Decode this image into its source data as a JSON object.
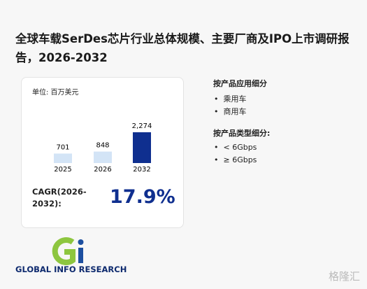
{
  "title": "全球车载SerDes芯片行业总体规模、主要厂商及IPO上市调研报告，2026-2032",
  "chart_data": {
    "type": "bar",
    "subtitle": "单位: 百万美元",
    "categories": [
      "2025",
      "2026",
      "2032"
    ],
    "values": [
      701,
      848,
      2274
    ],
    "value_labels": [
      "701",
      "848",
      "2,274"
    ],
    "colors": [
      "#d3e4f6",
      "#d3e4f6",
      "#0f2f8f"
    ]
  },
  "cagr": {
    "label": "CAGR(2026-2032):",
    "value": "17.9%"
  },
  "sections": [
    {
      "heading": "按产品应用细分",
      "items": [
        "乘用车",
        "商用车"
      ]
    },
    {
      "heading": "按产品类型细分:",
      "items": [
        "< 6Gbps",
        "≥ 6Gbps"
      ]
    }
  ],
  "logo": "GLOBAL INFO RESEARCH",
  "watermark": "格隆汇"
}
